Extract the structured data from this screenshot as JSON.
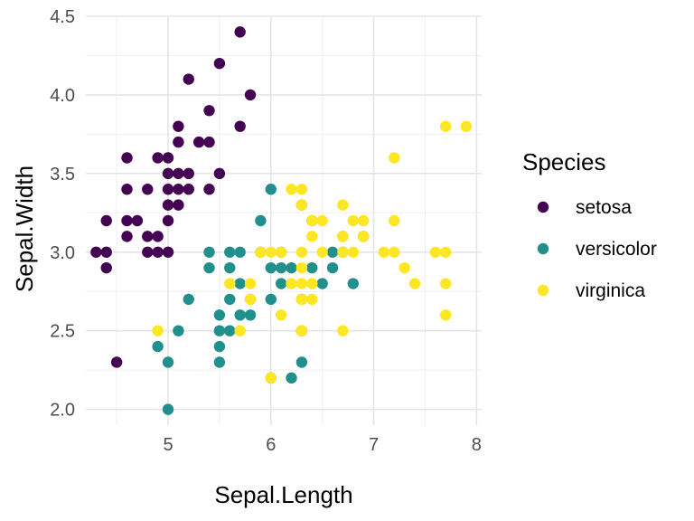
{
  "chart_data": {
    "type": "scatter",
    "xlabel": "Sepal.Length",
    "ylabel": "Sepal.Width",
    "xlim": [
      4.2,
      8.05
    ],
    "ylim": [
      1.9,
      4.5
    ],
    "xticks": [
      5,
      6,
      7,
      8
    ],
    "yticks": [
      2.0,
      2.5,
      3.0,
      3.5,
      4.0,
      4.5
    ],
    "xtick_labels": [
      "5",
      "6",
      "7",
      "8"
    ],
    "ytick_labels": [
      "2.0",
      "2.5",
      "3.0",
      "3.5",
      "4.0",
      "4.5"
    ],
    "grid": true,
    "legend": {
      "title": "Species",
      "placement": "right"
    },
    "series": [
      {
        "name": "setosa",
        "color": "#440154",
        "points": [
          [
            5.7,
            4.4
          ],
          [
            5.5,
            4.2
          ],
          [
            5.2,
            4.1
          ],
          [
            5.8,
            4.0
          ],
          [
            5.4,
            3.9
          ],
          [
            5.1,
            3.8
          ],
          [
            5.7,
            3.8
          ],
          [
            5.1,
            3.7
          ],
          [
            5.3,
            3.7
          ],
          [
            5.4,
            3.7
          ],
          [
            4.6,
            3.6
          ],
          [
            4.9,
            3.6
          ],
          [
            5.0,
            3.6
          ],
          [
            5.4,
            3.4
          ],
          [
            5.0,
            3.5
          ],
          [
            5.1,
            3.5
          ],
          [
            5.2,
            3.5
          ],
          [
            5.5,
            3.5
          ],
          [
            4.6,
            3.4
          ],
          [
            4.8,
            3.4
          ],
          [
            5.0,
            3.4
          ],
          [
            5.1,
            3.4
          ],
          [
            5.2,
            3.4
          ],
          [
            5.0,
            3.3
          ],
          [
            5.1,
            3.3
          ],
          [
            4.4,
            3.2
          ],
          [
            4.6,
            3.2
          ],
          [
            4.7,
            3.2
          ],
          [
            5.0,
            3.2
          ],
          [
            4.6,
            3.1
          ],
          [
            4.8,
            3.1
          ],
          [
            4.9,
            3.1
          ],
          [
            4.3,
            3.0
          ],
          [
            4.4,
            3.0
          ],
          [
            4.8,
            3.0
          ],
          [
            4.9,
            3.0
          ],
          [
            5.0,
            3.0
          ],
          [
            4.4,
            2.9
          ],
          [
            4.5,
            2.3
          ]
        ]
      },
      {
        "name": "versicolor",
        "color": "#21908c",
        "points": [
          [
            6.0,
            3.4
          ],
          [
            6.3,
            3.3
          ],
          [
            6.7,
            3.1
          ],
          [
            6.9,
            3.1
          ],
          [
            5.9,
            3.2
          ],
          [
            6.4,
            3.2
          ],
          [
            5.6,
            3.0
          ],
          [
            5.4,
            3.0
          ],
          [
            5.7,
            3.0
          ],
          [
            5.9,
            3.0
          ],
          [
            6.0,
            2.9
          ],
          [
            6.1,
            2.9
          ],
          [
            6.1,
            3.0
          ],
          [
            6.6,
            3.0
          ],
          [
            6.7,
            3.0
          ],
          [
            5.6,
            2.9
          ],
          [
            6.2,
            2.9
          ],
          [
            6.4,
            2.9
          ],
          [
            6.6,
            2.9
          ],
          [
            5.7,
            2.8
          ],
          [
            6.1,
            2.8
          ],
          [
            6.5,
            2.8
          ],
          [
            6.8,
            2.8
          ],
          [
            5.6,
            2.7
          ],
          [
            5.8,
            2.7
          ],
          [
            6.0,
            2.7
          ],
          [
            5.2,
            2.7
          ],
          [
            5.5,
            2.6
          ],
          [
            5.7,
            2.6
          ],
          [
            5.8,
            2.6
          ],
          [
            5.5,
            2.5
          ],
          [
            5.6,
            2.5
          ],
          [
            6.3,
            2.5
          ],
          [
            5.1,
            2.5
          ],
          [
            5.5,
            2.4
          ],
          [
            4.9,
            2.4
          ],
          [
            5.0,
            2.3
          ],
          [
            5.5,
            2.3
          ],
          [
            6.3,
            2.3
          ],
          [
            6.0,
            2.2
          ],
          [
            6.2,
            2.2
          ],
          [
            5.0,
            2.0
          ],
          [
            5.4,
            2.9
          ],
          [
            6.3,
            2.7
          ]
        ]
      },
      {
        "name": "virginica",
        "color": "#fde725",
        "points": [
          [
            7.7,
            3.8
          ],
          [
            7.9,
            3.8
          ],
          [
            7.2,
            3.6
          ],
          [
            6.2,
            3.4
          ],
          [
            6.3,
            3.4
          ],
          [
            6.3,
            3.3
          ],
          [
            6.7,
            3.3
          ],
          [
            6.4,
            3.2
          ],
          [
            6.5,
            3.2
          ],
          [
            6.8,
            3.2
          ],
          [
            6.9,
            3.2
          ],
          [
            7.2,
            3.2
          ],
          [
            6.4,
            3.1
          ],
          [
            6.7,
            3.1
          ],
          [
            6.9,
            3.1
          ],
          [
            6.5,
            3.0
          ],
          [
            5.9,
            3.0
          ],
          [
            6.0,
            3.0
          ],
          [
            6.1,
            3.0
          ],
          [
            6.3,
            3.0
          ],
          [
            6.7,
            3.0
          ],
          [
            6.8,
            3.0
          ],
          [
            7.1,
            3.0
          ],
          [
            7.2,
            3.0
          ],
          [
            7.6,
            3.0
          ],
          [
            7.7,
            3.0
          ],
          [
            7.3,
            2.9
          ],
          [
            6.3,
            2.9
          ],
          [
            6.4,
            2.8
          ],
          [
            5.8,
            2.8
          ],
          [
            6.2,
            2.8
          ],
          [
            6.3,
            2.8
          ],
          [
            5.6,
            2.8
          ],
          [
            7.4,
            2.8
          ],
          [
            7.7,
            2.8
          ],
          [
            6.4,
            2.7
          ],
          [
            6.3,
            2.7
          ],
          [
            5.8,
            2.7
          ],
          [
            6.1,
            2.6
          ],
          [
            7.7,
            2.6
          ],
          [
            5.7,
            2.5
          ],
          [
            4.9,
            2.5
          ],
          [
            6.3,
            2.5
          ],
          [
            6.7,
            2.5
          ],
          [
            6.0,
            2.2
          ]
        ]
      }
    ]
  }
}
